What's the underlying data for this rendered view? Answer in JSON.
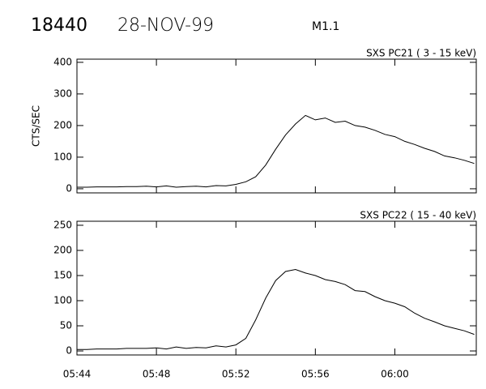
{
  "header": {
    "number": "18440",
    "date": "28-NOV-99",
    "class": "M1.1"
  },
  "chart_data": [
    {
      "type": "line",
      "title": "SXS PC21  (  3 - 15 keV)",
      "y_label": "CTS/SEC",
      "x": [
        344,
        344.5,
        345,
        345.5,
        346,
        346.5,
        347,
        347.5,
        348,
        348.5,
        349,
        349.5,
        350,
        350.5,
        351,
        351.5,
        352,
        352.5,
        353,
        353.5,
        354,
        354.5,
        355,
        355.5,
        356,
        356.5,
        357,
        357.5,
        358,
        358.5,
        359,
        359.5,
        360,
        360.5,
        361,
        361.5,
        362,
        362.5,
        363,
        363.5,
        364
      ],
      "series": [
        {
          "name": "SXS PC21",
          "color": "#000000",
          "values": [
            5,
            5,
            6,
            6,
            6,
            7,
            7,
            8,
            6,
            9,
            5,
            7,
            8,
            6,
            10,
            9,
            14,
            22,
            38,
            75,
            125,
            170,
            205,
            232,
            218,
            224,
            210,
            214,
            200,
            195,
            185,
            172,
            165,
            150,
            140,
            128,
            118,
            104,
            98,
            90,
            80
          ]
        }
      ],
      "xlim": [
        344,
        364.1
      ],
      "ylim": [
        -13,
        410
      ],
      "yticks": [
        0,
        100,
        200,
        300,
        400
      ]
    },
    {
      "type": "line",
      "title": "SXS PC22  ( 15 - 40 keV)",
      "x": [
        344,
        344.5,
        345,
        345.5,
        346,
        346.5,
        347,
        347.5,
        348,
        348.5,
        349,
        349.5,
        350,
        350.5,
        351,
        351.5,
        352,
        352.5,
        353,
        353.5,
        354,
        354.5,
        355,
        355.5,
        356,
        356.5,
        357,
        357.5,
        358,
        358.5,
        359,
        359.5,
        360,
        360.5,
        361,
        361.5,
        362,
        362.5,
        363,
        363.5,
        364
      ],
      "series": [
        {
          "name": "SXS PC22",
          "color": "#000000",
          "values": [
            3,
            3,
            4,
            4,
            4,
            5,
            5,
            5,
            6,
            4,
            8,
            5,
            7,
            6,
            10,
            8,
            12,
            25,
            62,
            105,
            140,
            158,
            162,
            155,
            150,
            142,
            138,
            132,
            120,
            118,
            108,
            100,
            95,
            88,
            75,
            65,
            58,
            50,
            45,
            40,
            33
          ]
        }
      ],
      "xlim": [
        344,
        364.1
      ],
      "ylim": [
        -8,
        258
      ],
      "yticks": [
        0,
        50,
        100,
        150,
        200,
        250
      ],
      "xticks": [
        {
          "value": 344,
          "label": "05:44"
        },
        {
          "value": 348,
          "label": "05:48"
        },
        {
          "value": 352,
          "label": "05:52"
        },
        {
          "value": 356,
          "label": "05:56"
        },
        {
          "value": 360,
          "label": "06:00"
        }
      ]
    }
  ]
}
